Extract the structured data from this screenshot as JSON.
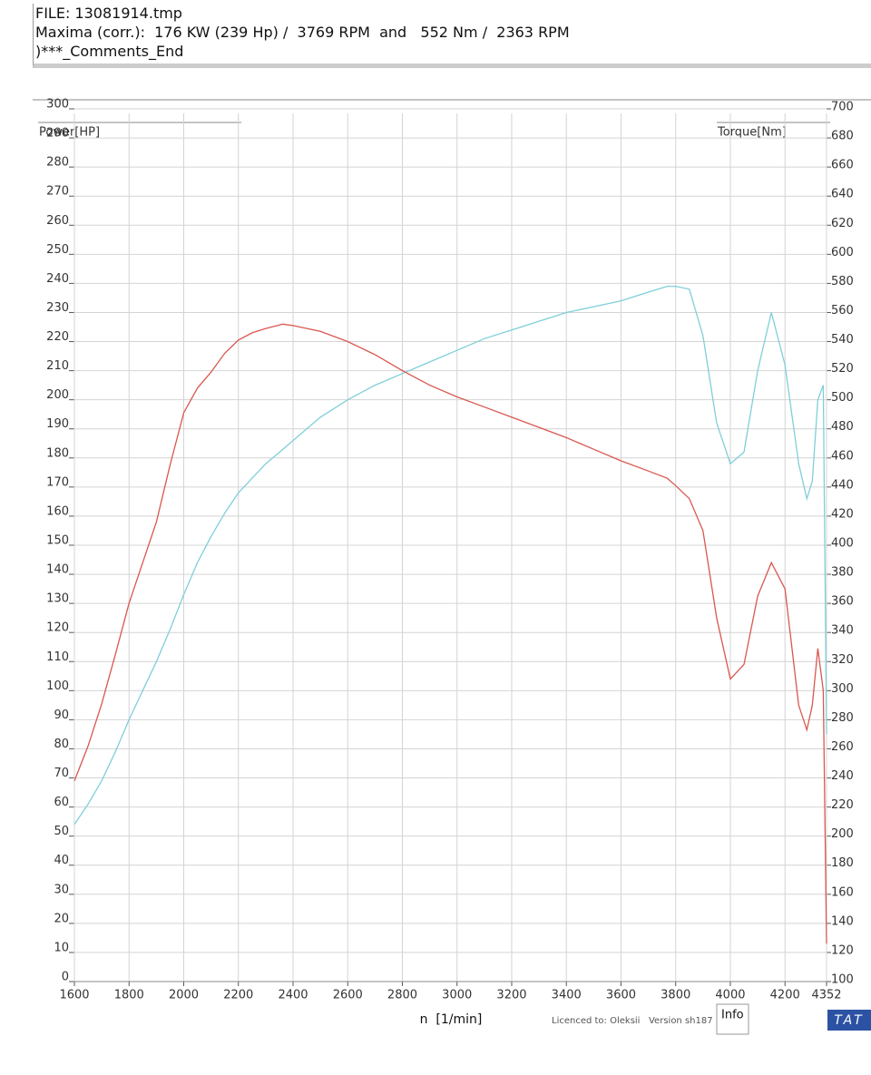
{
  "header": {
    "file": "FILE: 13081914.tmp",
    "maxima": "Maxima (corr.):  176 KW (239 Hp) /  3769 RPM  and   552 Nm /  2363 RPM",
    "comments": ")***_Comments_End"
  },
  "footer": {
    "licence": "Licenced to: Oleksii   Version sh187",
    "info": "Info",
    "brand": "TAT"
  },
  "chart_data": {
    "type": "line",
    "x_label": "n  [1/min]",
    "y_label": "Power[HP]",
    "y2_label": "Torque[Nm]",
    "grid": true,
    "x": [
      1600,
      1650,
      1700,
      1750,
      1800,
      1850,
      1900,
      1950,
      2000,
      2050,
      2100,
      2150,
      2200,
      2250,
      2300,
      2363,
      2400,
      2500,
      2600,
      2700,
      2800,
      2900,
      3000,
      3100,
      3200,
      3300,
      3400,
      3500,
      3600,
      3700,
      3769,
      3800,
      3850,
      3900,
      3950,
      4000,
      4050,
      4100,
      4150,
      4200,
      4250,
      4280,
      4300,
      4320,
      4340,
      4352
    ],
    "series": [
      {
        "name": "Power[HP]",
        "color": "#7fcfd9",
        "axis": "y",
        "values": [
          54,
          61,
          69,
          79,
          90,
          100,
          110,
          121,
          133,
          144,
          153,
          161,
          168,
          173,
          178,
          183,
          186,
          194,
          200,
          205,
          209,
          213,
          217,
          221,
          224,
          227,
          230,
          232,
          234,
          237,
          239,
          239,
          238,
          222,
          192,
          178,
          182,
          210,
          230,
          212,
          178,
          166,
          172,
          200,
          205,
          85
        ]
      },
      {
        "name": "Torque[Nm]",
        "color": "#d9574f",
        "axis": "y2",
        "values": [
          238,
          262,
          291,
          325,
          360,
          388,
          416,
          455,
          491,
          508,
          519,
          532,
          541,
          546,
          549,
          552,
          551,
          547,
          540,
          531,
          520,
          510,
          502,
          495,
          488,
          481,
          474,
          466,
          458,
          451,
          446,
          441,
          432,
          410,
          350,
          308,
          318,
          365,
          388,
          370,
          290,
          273,
          290,
          329,
          300,
          126
        ]
      }
    ],
    "xlim": [
      1600,
      4352
    ],
    "xticks": [
      1600,
      1800,
      2000,
      2200,
      2400,
      2600,
      2800,
      3000,
      3200,
      3400,
      3600,
      3800,
      4000,
      4200,
      4352
    ],
    "ylim": [
      0,
      300
    ],
    "yticks": [
      0,
      10,
      20,
      30,
      40,
      50,
      60,
      70,
      80,
      90,
      100,
      110,
      120,
      130,
      140,
      150,
      160,
      170,
      180,
      190,
      200,
      210,
      220,
      230,
      240,
      250,
      260,
      270,
      280,
      290,
      300
    ],
    "y2lim": [
      100,
      700
    ],
    "y2ticks": [
      100,
      120,
      140,
      160,
      180,
      200,
      220,
      240,
      260,
      280,
      300,
      320,
      340,
      360,
      380,
      400,
      420,
      440,
      460,
      480,
      500,
      520,
      540,
      560,
      580,
      600,
      620,
      640,
      660,
      680,
      700
    ]
  }
}
